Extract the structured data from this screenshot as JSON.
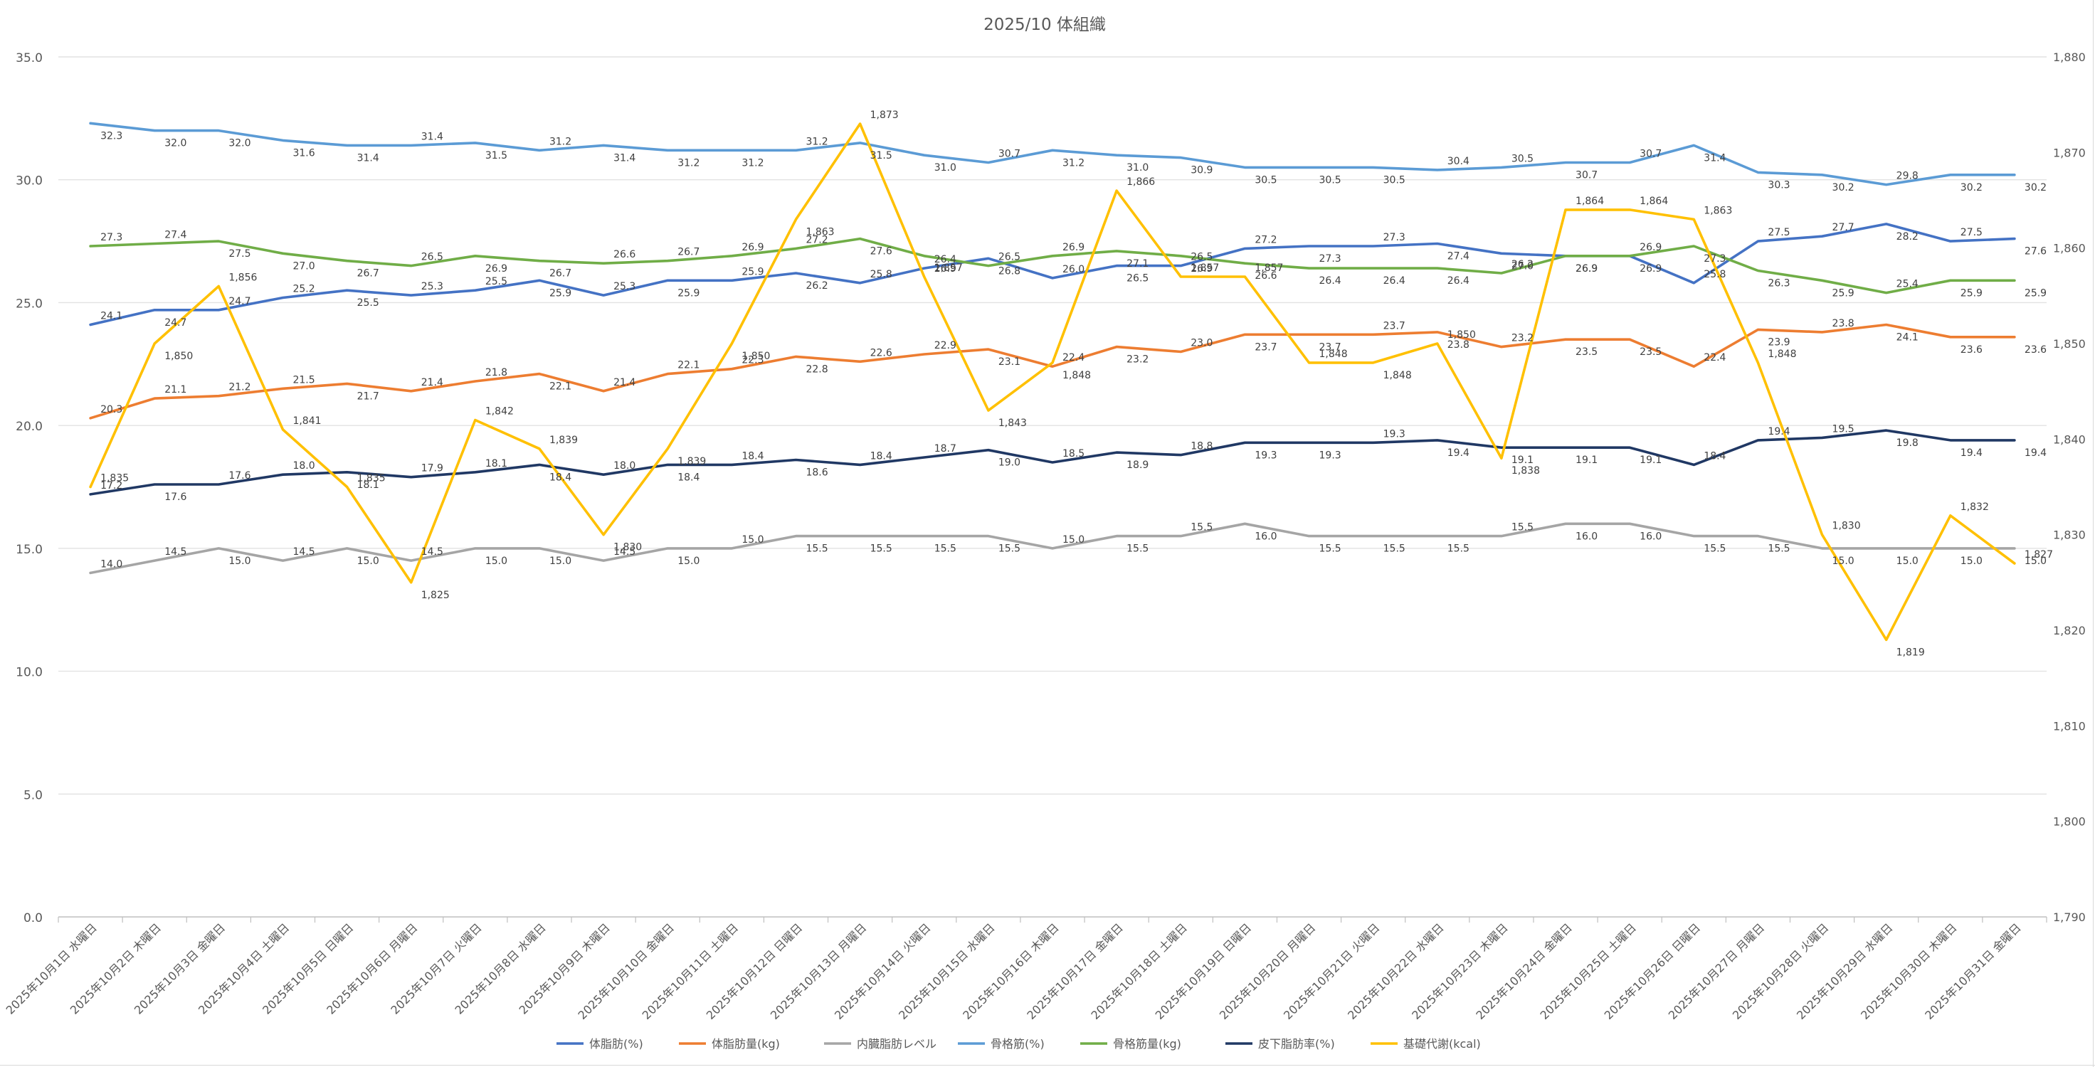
{
  "chart_data": {
    "type": "line",
    "title": "2025/10 体組織",
    "xlabel": "",
    "ylabel": "",
    "grid": true,
    "legend_position": "bottom",
    "y_left": {
      "min": 0,
      "max": 35,
      "step": 5,
      "tick_labels": [
        "0.0",
        "5.0",
        "10.0",
        "15.0",
        "20.0",
        "25.0",
        "30.0",
        "35.0"
      ]
    },
    "y_right": {
      "min": 1790,
      "max": 1880,
      "step": 10,
      "tick_labels": [
        "1,790",
        "1,800",
        "1,810",
        "1,820",
        "1,830",
        "1,840",
        "1,850",
        "1,860",
        "1,870",
        "1,880"
      ]
    },
    "categories": [
      "2025年10月1日 水曜日",
      "2025年10月2日 木曜日",
      "2025年10月3日 金曜日",
      "2025年10月4日 土曜日",
      "2025年10月5日 日曜日",
      "2025年10月6日 月曜日",
      "2025年10月7日 火曜日",
      "2025年10月8日 水曜日",
      "2025年10月9日 木曜日",
      "2025年10月10日 金曜日",
      "2025年10月11日 土曜日",
      "2025年10月12日 日曜日",
      "2025年10月13日 月曜日",
      "2025年10月14日 火曜日",
      "2025年10月15日 水曜日",
      "2025年10月16日 木曜日",
      "2025年10月17日 金曜日",
      "2025年10月18日 土曜日",
      "2025年10月19日 日曜日",
      "2025年10月20日 月曜日",
      "2025年10月21日 火曜日",
      "2025年10月22日 水曜日",
      "2025年10月23日 木曜日",
      "2025年10月24日 金曜日",
      "2025年10月25日 土曜日",
      "2025年10月26日 日曜日",
      "2025年10月27日 月曜日",
      "2025年10月28日 火曜日",
      "2025年10月29日 水曜日",
      "2025年10月30日 木曜日",
      "2025年10月31日 金曜日"
    ],
    "series": [
      {
        "name": "体脂肪(%)",
        "axis": "left",
        "color": "#4472c4",
        "decimals": 1,
        "values": [
          24.1,
          24.7,
          24.7,
          25.2,
          25.5,
          25.3,
          25.5,
          25.9,
          25.3,
          25.9,
          25.9,
          26.2,
          25.8,
          26.4,
          26.8,
          26.0,
          26.5,
          26.5,
          27.2,
          27.3,
          27.3,
          27.4,
          27.0,
          26.9,
          26.9,
          25.8,
          27.5,
          27.7,
          28.2,
          27.5,
          27.6
        ]
      },
      {
        "name": "体脂肪量(kg)",
        "axis": "left",
        "color": "#ed7d31",
        "decimals": 1,
        "values": [
          20.3,
          21.1,
          21.2,
          21.5,
          21.7,
          21.4,
          21.8,
          22.1,
          21.4,
          22.1,
          22.3,
          22.8,
          22.6,
          22.9,
          23.1,
          22.4,
          23.2,
          23.0,
          23.7,
          23.7,
          23.7,
          23.8,
          23.2,
          23.5,
          23.5,
          22.4,
          23.9,
          23.8,
          24.1,
          23.6,
          23.6
        ]
      },
      {
        "name": "内臓脂肪レベル",
        "axis": "left",
        "color": "#a5a5a5",
        "decimals": 1,
        "values": [
          14.0,
          14.5,
          15.0,
          14.5,
          15.0,
          14.5,
          15.0,
          15.0,
          14.5,
          15.0,
          15.0,
          15.5,
          15.5,
          15.5,
          15.5,
          15.0,
          15.5,
          15.5,
          16.0,
          15.5,
          15.5,
          15.5,
          15.5,
          16.0,
          16.0,
          15.5,
          15.5,
          15.0,
          15.0,
          15.0,
          15.0
        ]
      },
      {
        "name": "骨格筋(%)",
        "axis": "left",
        "color": "#5b9bd5",
        "decimals": 1,
        "values": [
          32.3,
          32.0,
          32.0,
          31.6,
          31.4,
          31.4,
          31.5,
          31.2,
          31.4,
          31.2,
          31.2,
          31.2,
          31.5,
          31.0,
          30.7,
          31.2,
          31.0,
          30.9,
          30.5,
          30.5,
          30.5,
          30.4,
          30.5,
          30.7,
          30.7,
          31.4,
          30.3,
          30.2,
          29.8,
          30.2,
          30.2
        ]
      },
      {
        "name": "骨格筋量(kg)",
        "axis": "left",
        "color": "#70ad47",
        "decimals": 1,
        "values": [
          27.3,
          27.4,
          27.5,
          27.0,
          26.7,
          26.5,
          26.9,
          26.7,
          26.6,
          26.7,
          26.9,
          27.2,
          27.6,
          26.9,
          26.5,
          26.9,
          27.1,
          26.9,
          26.6,
          26.4,
          26.4,
          26.4,
          26.2,
          26.9,
          26.9,
          27.3,
          26.3,
          25.9,
          25.4,
          25.9,
          25.9
        ]
      },
      {
        "name": "皮下脂肪率(%)",
        "axis": "left",
        "color": "#203864",
        "decimals": 1,
        "values": [
          17.2,
          17.6,
          17.6,
          18.0,
          18.1,
          17.9,
          18.1,
          18.4,
          18.0,
          18.4,
          18.4,
          18.6,
          18.4,
          18.7,
          19.0,
          18.5,
          18.9,
          18.8,
          19.3,
          19.3,
          19.3,
          19.4,
          19.1,
          19.1,
          19.1,
          18.4,
          19.4,
          19.5,
          19.8,
          19.4,
          19.4
        ]
      },
      {
        "name": "基礎代謝(kcal)",
        "axis": "right",
        "color": "#ffc000",
        "decimals": 0,
        "values": [
          1835,
          1850,
          1856,
          1841,
          1835,
          1825,
          1842,
          1839,
          1830,
          1839,
          1850,
          1863,
          1873,
          1857,
          1843,
          1848,
          1866,
          1857,
          1857,
          1848,
          1848,
          1850,
          1838,
          1864,
          1864,
          1863,
          1848,
          1830,
          1819,
          1832,
          1827
        ]
      }
    ]
  }
}
